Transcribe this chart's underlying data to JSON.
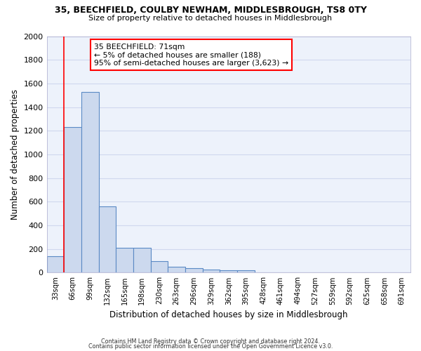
{
  "title_line1": "35, BEECHFIELD, COULBY NEWHAM, MIDDLESBROUGH, TS8 0TY",
  "title_line2": "Size of property relative to detached houses in Middlesbrough",
  "xlabel": "Distribution of detached houses by size in Middlesbrough",
  "ylabel": "Number of detached properties",
  "footer_line1": "Contains HM Land Registry data © Crown copyright and database right 2024.",
  "footer_line2": "Contains public sector information licensed under the Open Government Licence v3.0.",
  "categories": [
    "33sqm",
    "66sqm",
    "99sqm",
    "132sqm",
    "165sqm",
    "198sqm",
    "230sqm",
    "263sqm",
    "296sqm",
    "329sqm",
    "362sqm",
    "395sqm",
    "428sqm",
    "461sqm",
    "494sqm",
    "527sqm",
    "559sqm",
    "592sqm",
    "625sqm",
    "658sqm",
    "691sqm"
  ],
  "values": [
    140,
    1230,
    1530,
    560,
    210,
    210,
    95,
    50,
    38,
    25,
    20,
    20,
    0,
    0,
    0,
    0,
    0,
    0,
    0,
    0,
    0
  ],
  "bar_color": "#ccd9ee",
  "bar_edge_color": "#5b8ac5",
  "ylim": [
    0,
    2000
  ],
  "yticks": [
    0,
    200,
    400,
    600,
    800,
    1000,
    1200,
    1400,
    1600,
    1800,
    2000
  ],
  "annotation_text_line1": "35 BEECHFIELD: 71sqm",
  "annotation_text_line2": "← 5% of detached houses are smaller (188)",
  "annotation_text_line3": "95% of semi-detached houses are larger (3,623) →",
  "vline_x_index": 1,
  "background_color": "#edf2fb",
  "grid_color": "#d0d8ee",
  "bar_width": 1.0
}
